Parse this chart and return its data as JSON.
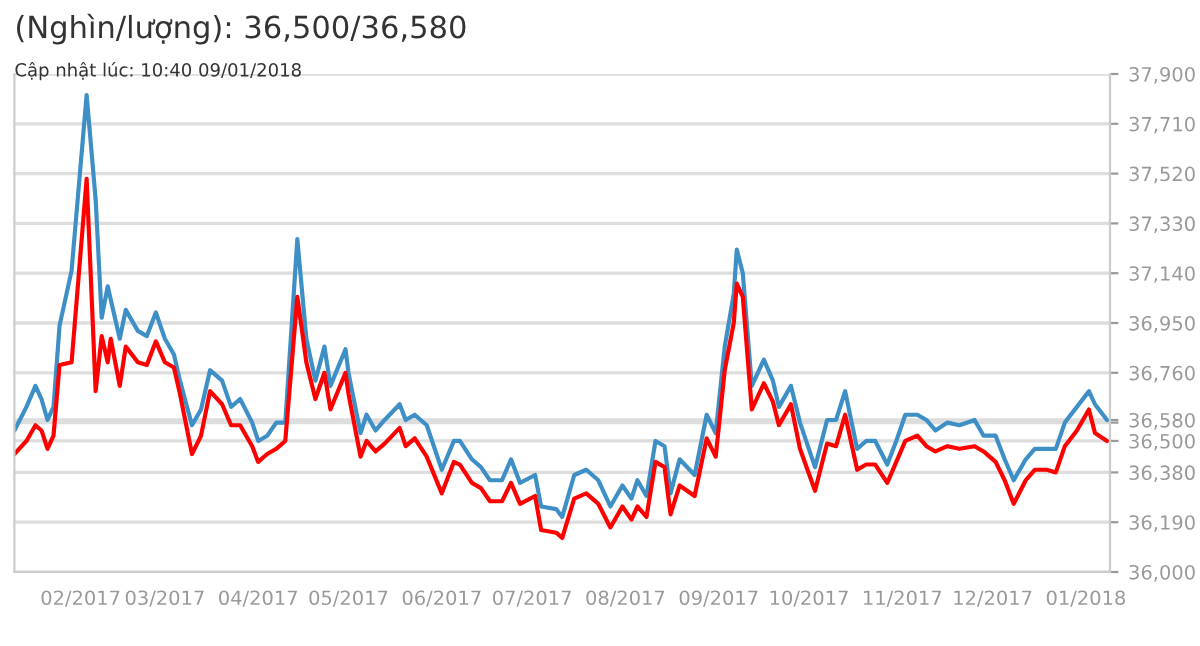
{
  "chart_data": {
    "type": "line",
    "title": "(Nghìn/lượng): 36,500/36,580",
    "subtitle": "Cập nhật lúc: 10:40 09/01/2018",
    "x": [
      "2017-01-10",
      "2017-01-14",
      "2017-01-17",
      "2017-01-19",
      "2017-01-21",
      "2017-01-23",
      "2017-01-25",
      "2017-01-29",
      "2017-02-03",
      "2017-02-06",
      "2017-02-08",
      "2017-02-10",
      "2017-02-11",
      "2017-02-14",
      "2017-02-16",
      "2017-02-20",
      "2017-02-23",
      "2017-02-26",
      "2017-03-01",
      "2017-03-04",
      "2017-03-06",
      "2017-03-10",
      "2017-03-13",
      "2017-03-16",
      "2017-03-20",
      "2017-03-23",
      "2017-03-26",
      "2017-03-30",
      "2017-04-01",
      "2017-04-04",
      "2017-04-07",
      "2017-04-10",
      "2017-04-14",
      "2017-04-17",
      "2017-04-20",
      "2017-04-23",
      "2017-04-25",
      "2017-04-30",
      "2017-05-01",
      "2017-05-05",
      "2017-05-07",
      "2017-05-10",
      "2017-05-13",
      "2017-05-18",
      "2017-05-20",
      "2017-05-23",
      "2017-05-27",
      "2017-06-01",
      "2017-06-05",
      "2017-06-07",
      "2017-06-11",
      "2017-06-14",
      "2017-06-17",
      "2017-06-21",
      "2017-06-24",
      "2017-06-27",
      "2017-07-02",
      "2017-07-04",
      "2017-07-09",
      "2017-07-11",
      "2017-07-15",
      "2017-07-19",
      "2017-07-23",
      "2017-07-27",
      "2017-07-31",
      "2017-08-03",
      "2017-08-05",
      "2017-08-08",
      "2017-08-11",
      "2017-08-14",
      "2017-08-16",
      "2017-08-19",
      "2017-08-24",
      "2017-08-28",
      "2017-08-31",
      "2017-09-03",
      "2017-09-06",
      "2017-09-07",
      "2017-09-09",
      "2017-09-12",
      "2017-09-16",
      "2017-09-19",
      "2017-09-21",
      "2017-09-25",
      "2017-09-28",
      "2017-10-03",
      "2017-10-07",
      "2017-10-10",
      "2017-10-13",
      "2017-10-17",
      "2017-10-20",
      "2017-10-23",
      "2017-10-27",
      "2017-10-30",
      "2017-11-02",
      "2017-11-06",
      "2017-11-09",
      "2017-11-12",
      "2017-11-16",
      "2017-11-20",
      "2017-11-25",
      "2017-11-28",
      "2017-12-02",
      "2017-12-05",
      "2017-12-08",
      "2017-12-12",
      "2017-12-15",
      "2017-12-19",
      "2017-12-22",
      "2017-12-25",
      "2017-12-29",
      "2018-01-02",
      "2018-01-04",
      "2018-01-08"
    ],
    "series": [
      {
        "color": "#3d8fc6",
        "values": [
          36540,
          36630,
          36710,
          36660,
          36580,
          36630,
          36940,
          37150,
          37820,
          37420,
          36970,
          37090,
          37040,
          36890,
          37000,
          36920,
          36900,
          36990,
          36890,
          36830,
          36730,
          36560,
          36620,
          36770,
          36730,
          36630,
          36660,
          36570,
          36500,
          36520,
          36570,
          36570,
          37270,
          36890,
          36730,
          36860,
          36710,
          36850,
          36760,
          36530,
          36600,
          36540,
          36580,
          36640,
          36580,
          36600,
          36560,
          36390,
          36500,
          36500,
          36430,
          36400,
          36350,
          36350,
          36430,
          36340,
          36370,
          36250,
          36240,
          36210,
          36370,
          36390,
          36350,
          36250,
          36330,
          36280,
          36350,
          36290,
          36500,
          36480,
          36300,
          36430,
          36370,
          36600,
          36530,
          36860,
          37060,
          37230,
          37140,
          36710,
          36810,
          36730,
          36630,
          36710,
          36570,
          36400,
          36580,
          36580,
          36690,
          36470,
          36500,
          36500,
          36410,
          36500,
          36600,
          36600,
          36580,
          36540,
          36570,
          36560,
          36580,
          36520,
          36520,
          36430,
          36350,
          36430,
          36470,
          36470,
          36470,
          36570,
          36630,
          36690,
          36640,
          36580
        ]
      },
      {
        "color": "#ff0000",
        "values": [
          36450,
          36500,
          36560,
          36540,
          36470,
          36520,
          36790,
          36800,
          37500,
          36690,
          36900,
          36800,
          36890,
          36710,
          36860,
          36800,
          36790,
          36880,
          36800,
          36780,
          36680,
          36450,
          36520,
          36690,
          36640,
          36560,
          36560,
          36480,
          36420,
          36450,
          36470,
          36500,
          37050,
          36800,
          36660,
          36760,
          36620,
          36760,
          36680,
          36440,
          36500,
          36460,
          36490,
          36550,
          36480,
          36510,
          36440,
          36300,
          36420,
          36410,
          36340,
          36320,
          36270,
          36270,
          36340,
          36260,
          36290,
          36160,
          36150,
          36130,
          36280,
          36300,
          36260,
          36170,
          36250,
          36200,
          36250,
          36210,
          36420,
          36400,
          36220,
          36330,
          36290,
          36510,
          36440,
          36770,
          36950,
          37100,
          37050,
          36620,
          36720,
          36650,
          36560,
          36640,
          36470,
          36310,
          36490,
          36480,
          36600,
          36390,
          36410,
          36410,
          36340,
          36420,
          36500,
          36520,
          36480,
          36460,
          36480,
          36470,
          36480,
          36460,
          36420,
          36350,
          36260,
          36350,
          36390,
          36390,
          36380,
          36480,
          36540,
          36620,
          36530,
          36500
        ]
      }
    ],
    "xlim": [
      "2017-01-10",
      "2018-01-09"
    ],
    "xticks": [
      {
        "value": "2017-02-01",
        "label": "02/2017"
      },
      {
        "value": "2017-03-01",
        "label": "03/2017"
      },
      {
        "value": "2017-04-01",
        "label": "04/2017"
      },
      {
        "value": "2017-05-01",
        "label": "05/2017"
      },
      {
        "value": "2017-06-01",
        "label": "06/2017"
      },
      {
        "value": "2017-07-01",
        "label": "07/2017"
      },
      {
        "value": "2017-08-01",
        "label": "08/2017"
      },
      {
        "value": "2017-09-01",
        "label": "09/2017"
      },
      {
        "value": "2017-10-01",
        "label": "10/2017"
      },
      {
        "value": "2017-11-01",
        "label": "11/2017"
      },
      {
        "value": "2017-12-01",
        "label": "12/2017"
      },
      {
        "value": "2018-01-01",
        "label": "01/2018"
      }
    ],
    "ylim": [
      36000,
      37900
    ],
    "yticks": [
      {
        "value": 36000,
        "label": "36,000"
      },
      {
        "value": 36190,
        "label": "36,190"
      },
      {
        "value": 36380,
        "label": "36,380"
      },
      {
        "value": 36500,
        "label": "36,500"
      },
      {
        "value": 36570,
        "label": null
      },
      {
        "value": 36580,
        "label": "36,580"
      },
      {
        "value": 36760,
        "label": "36,760"
      },
      {
        "value": 36950,
        "label": "36,950"
      },
      {
        "value": 37140,
        "label": "37,140"
      },
      {
        "value": 37330,
        "label": "37,330"
      },
      {
        "value": 37520,
        "label": "37,520"
      },
      {
        "value": 37710,
        "label": "37,710"
      },
      {
        "value": 37900,
        "label": "37,900"
      }
    ],
    "grid": "y",
    "line_style": "solid",
    "marker": "none",
    "legend": false
  }
}
